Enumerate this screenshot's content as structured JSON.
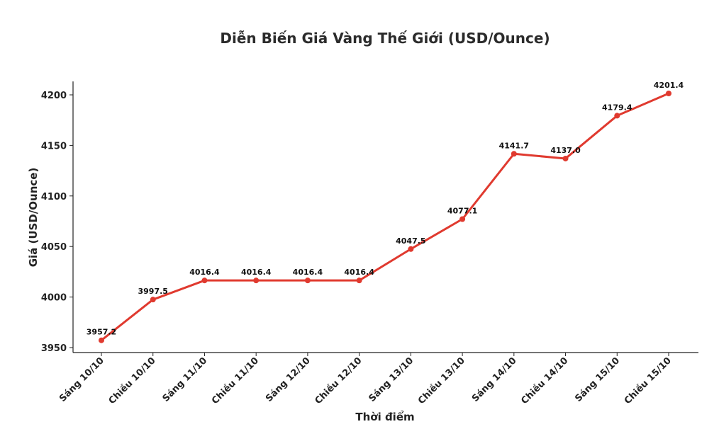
{
  "chart_data": {
    "type": "line",
    "title": "Diễn Biến Giá Vàng Thế Giới (USD/Ounce)",
    "xlabel": "Thời điểm",
    "ylabel": "Giá (USD/Ounce)",
    "categories": [
      "Sáng 10/10",
      "Chiều 10/10",
      "Sáng 11/10",
      "Chiều 11/10",
      "Sáng 12/10",
      "Chiều 12/10",
      "Sáng 13/10",
      "Chiều 13/10",
      "Sáng 14/10",
      "Chiều 14/10",
      "Sáng 15/10",
      "Chiều 15/10"
    ],
    "values": [
      3957.2,
      3997.5,
      4016.4,
      4016.4,
      4016.4,
      4016.4,
      4047.5,
      4077.1,
      4141.7,
      4137.0,
      4179.4,
      4201.4
    ],
    "y_ticks": [
      3950,
      4000,
      4050,
      4100,
      4150,
      4200
    ],
    "ylim": [
      3946,
      4213
    ],
    "grid": false,
    "line_color": "#e03a2f"
  }
}
